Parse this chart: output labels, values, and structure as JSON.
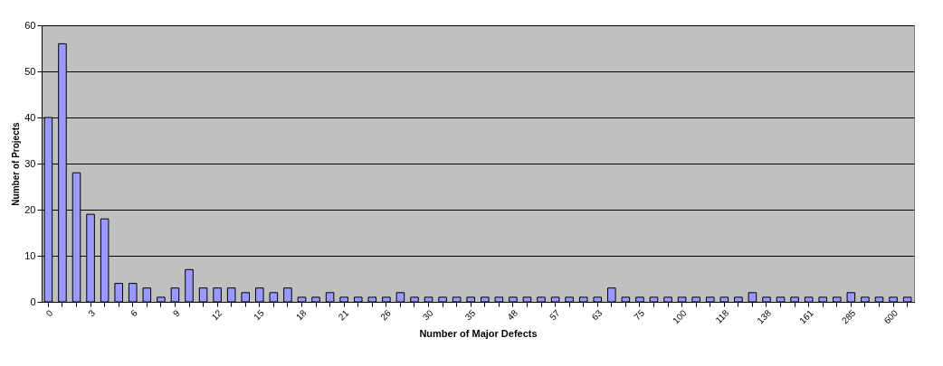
{
  "chart_data": {
    "type": "bar",
    "xlabel": "Number of Major Defects",
    "ylabel": "Number of Projects",
    "categories": [
      "0",
      null,
      null,
      "3",
      null,
      null,
      "6",
      null,
      null,
      "9",
      null,
      null,
      "12",
      null,
      null,
      "15",
      null,
      null,
      "18",
      null,
      null,
      "21",
      null,
      null,
      "26",
      null,
      null,
      "30",
      null,
      null,
      "35",
      null,
      null,
      "48",
      null,
      null,
      "57",
      null,
      null,
      "63",
      null,
      null,
      "75",
      null,
      null,
      "100",
      null,
      null,
      "118",
      null,
      null,
      "138",
      null,
      null,
      "161",
      null,
      null,
      "285",
      null,
      null,
      "600",
      null
    ],
    "values": [
      40,
      56,
      28,
      19,
      18,
      4,
      4,
      3,
      1,
      3,
      7,
      3,
      3,
      3,
      2,
      3,
      2,
      3,
      1,
      1,
      2,
      1,
      1,
      1,
      1,
      2,
      1,
      1,
      1,
      1,
      1,
      1,
      1,
      1,
      1,
      1,
      1,
      1,
      1,
      1,
      3,
      1,
      1,
      1,
      1,
      1,
      1,
      1,
      1,
      1,
      2,
      1,
      1,
      1,
      1,
      1,
      1,
      2,
      1,
      1,
      1,
      1
    ],
    "color": "#9999ff",
    "ylim": [
      0,
      60
    ],
    "yticks": [
      0,
      10,
      20,
      30,
      40,
      50,
      60
    ],
    "grid": "y"
  }
}
